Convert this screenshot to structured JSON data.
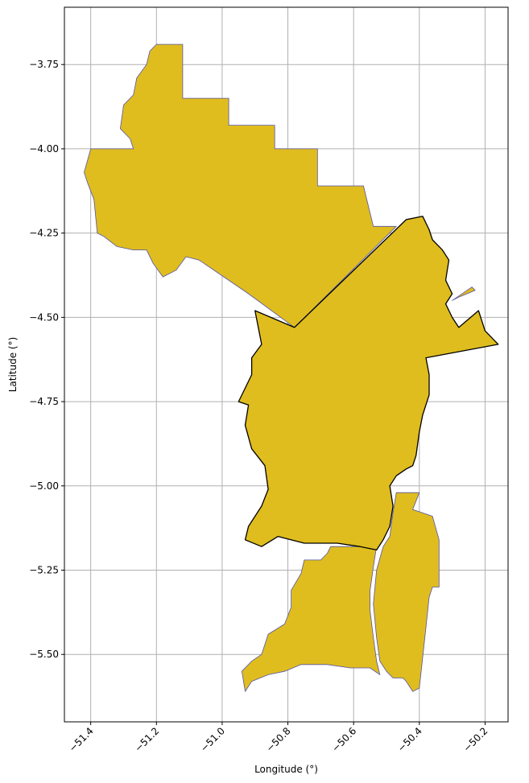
{
  "chart_data": {
    "type": "map",
    "xlabel": "Longitude (°)",
    "ylabel": "Latitude (°)",
    "xlim": [
      -51.48,
      -50.13
    ],
    "ylim": [
      -5.7,
      -3.58
    ],
    "xticks": [
      -51.4,
      -51.2,
      -51.0,
      -50.8,
      -50.6,
      -50.4,
      -50.2
    ],
    "xtick_labels": [
      "−51.4",
      "−51.2",
      "−51.0",
      "−50.8",
      "−50.6",
      "−50.4",
      "−50.2"
    ],
    "yticks": [
      -3.75,
      -4.0,
      -4.25,
      -4.5,
      -4.75,
      -5.0,
      -5.25,
      -5.5
    ],
    "ytick_labels": [
      "−3.75",
      "−4.00",
      "−4.25",
      "−4.50",
      "−4.75",
      "−5.00",
      "−5.25",
      "−5.50"
    ],
    "grid": true,
    "colors": {
      "fill": "#DFBD1F",
      "region_edge": "#5553A6",
      "highlight_edge": "#000000",
      "grid": "#b0b0b0"
    },
    "regions": [
      {
        "id": "north",
        "coords": [
          [
            -51.2,
            -3.69
          ],
          [
            -51.12,
            -3.69
          ],
          [
            -51.12,
            -3.85
          ],
          [
            -50.98,
            -3.85
          ],
          [
            -50.98,
            -3.93
          ],
          [
            -50.84,
            -3.93
          ],
          [
            -50.84,
            -4.0
          ],
          [
            -50.71,
            -4.0
          ],
          [
            -50.71,
            -4.11
          ],
          [
            -50.57,
            -4.11
          ],
          [
            -50.54,
            -4.23
          ],
          [
            -50.47,
            -4.23
          ],
          [
            -50.78,
            -4.53
          ],
          [
            -50.92,
            -4.43
          ],
          [
            -51.07,
            -4.33
          ],
          [
            -51.11,
            -4.32
          ],
          [
            -51.14,
            -4.36
          ],
          [
            -51.18,
            -4.38
          ],
          [
            -51.21,
            -4.34
          ],
          [
            -51.23,
            -4.3
          ],
          [
            -51.27,
            -4.3
          ],
          [
            -51.32,
            -4.29
          ],
          [
            -51.36,
            -4.26
          ],
          [
            -51.38,
            -4.25
          ],
          [
            -51.39,
            -4.15
          ],
          [
            -51.41,
            -4.1
          ],
          [
            -51.42,
            -4.07
          ],
          [
            -51.4,
            -4.0
          ],
          [
            -51.27,
            -4.0
          ],
          [
            -51.28,
            -3.97
          ],
          [
            -51.31,
            -3.94
          ],
          [
            -51.3,
            -3.87
          ],
          [
            -51.27,
            -3.84
          ],
          [
            -51.26,
            -3.79
          ],
          [
            -51.23,
            -3.75
          ],
          [
            -51.22,
            -3.71
          ]
        ]
      },
      {
        "id": "southwest",
        "coords": [
          [
            -50.67,
            -5.18
          ],
          [
            -50.53,
            -5.18
          ],
          [
            -50.54,
            -5.24
          ],
          [
            -50.55,
            -5.31
          ],
          [
            -50.55,
            -5.37
          ],
          [
            -50.54,
            -5.45
          ],
          [
            -50.53,
            -5.52
          ],
          [
            -50.52,
            -5.56
          ],
          [
            -50.55,
            -5.54
          ],
          [
            -50.61,
            -5.54
          ],
          [
            -50.68,
            -5.53
          ],
          [
            -50.76,
            -5.53
          ],
          [
            -50.81,
            -5.55
          ],
          [
            -50.86,
            -5.56
          ],
          [
            -50.91,
            -5.58
          ],
          [
            -50.93,
            -5.61
          ],
          [
            -50.94,
            -5.55
          ],
          [
            -50.91,
            -5.52
          ],
          [
            -50.88,
            -5.5
          ],
          [
            -50.86,
            -5.44
          ],
          [
            -50.81,
            -5.41
          ],
          [
            -50.79,
            -5.36
          ],
          [
            -50.79,
            -5.31
          ],
          [
            -50.76,
            -5.26
          ],
          [
            -50.75,
            -5.22
          ],
          [
            -50.7,
            -5.22
          ],
          [
            -50.68,
            -5.2
          ]
        ]
      },
      {
        "id": "southeast",
        "coords": [
          [
            -50.47,
            -5.02
          ],
          [
            -50.4,
            -5.02
          ],
          [
            -50.42,
            -5.07
          ],
          [
            -50.36,
            -5.09
          ],
          [
            -50.34,
            -5.16
          ],
          [
            -50.34,
            -5.3
          ],
          [
            -50.36,
            -5.3
          ],
          [
            -50.37,
            -5.33
          ],
          [
            -50.38,
            -5.42
          ],
          [
            -50.39,
            -5.51
          ],
          [
            -50.4,
            -5.6
          ],
          [
            -50.42,
            -5.61
          ],
          [
            -50.44,
            -5.58
          ],
          [
            -50.45,
            -5.57
          ],
          [
            -50.48,
            -5.57
          ],
          [
            -50.5,
            -5.55
          ],
          [
            -50.52,
            -5.52
          ],
          [
            -50.53,
            -5.45
          ],
          [
            -50.54,
            -5.35
          ],
          [
            -50.53,
            -5.25
          ],
          [
            -50.51,
            -5.18
          ],
          [
            -50.49,
            -5.15
          ],
          [
            -50.48,
            -5.08
          ]
        ]
      },
      {
        "id": "island",
        "coords": [
          [
            -50.3,
            -4.45
          ],
          [
            -50.24,
            -4.41
          ],
          [
            -50.23,
            -4.42
          ],
          [
            -50.28,
            -4.44
          ]
        ]
      }
    ],
    "highlight_region": {
      "coords": [
        [
          -50.78,
          -4.53
        ],
        [
          -50.44,
          -4.21
        ],
        [
          -50.39,
          -4.2
        ],
        [
          -50.37,
          -4.24
        ],
        [
          -50.36,
          -4.27
        ],
        [
          -50.33,
          -4.3
        ],
        [
          -50.31,
          -4.33
        ],
        [
          -50.32,
          -4.39
        ],
        [
          -50.3,
          -4.43
        ],
        [
          -50.32,
          -4.46
        ],
        [
          -50.3,
          -4.5
        ],
        [
          -50.28,
          -4.53
        ],
        [
          -50.22,
          -4.48
        ],
        [
          -50.2,
          -4.54
        ],
        [
          -50.16,
          -4.58
        ],
        [
          -50.38,
          -4.62
        ],
        [
          -50.37,
          -4.67
        ],
        [
          -50.37,
          -4.73
        ],
        [
          -50.39,
          -4.79
        ],
        [
          -50.4,
          -4.84
        ],
        [
          -50.41,
          -4.91
        ],
        [
          -50.42,
          -4.94
        ],
        [
          -50.44,
          -4.95
        ],
        [
          -50.47,
          -4.97
        ],
        [
          -50.49,
          -5.0
        ],
        [
          -50.48,
          -5.06
        ],
        [
          -50.49,
          -5.12
        ],
        [
          -50.51,
          -5.16
        ],
        [
          -50.53,
          -5.19
        ],
        [
          -50.58,
          -5.18
        ],
        [
          -50.65,
          -5.17
        ],
        [
          -50.75,
          -5.17
        ],
        [
          -50.83,
          -5.15
        ],
        [
          -50.88,
          -5.18
        ],
        [
          -50.93,
          -5.16
        ],
        [
          -50.92,
          -5.12
        ],
        [
          -50.88,
          -5.06
        ],
        [
          -50.86,
          -5.01
        ],
        [
          -50.87,
          -4.94
        ],
        [
          -50.91,
          -4.89
        ],
        [
          -50.93,
          -4.82
        ],
        [
          -50.92,
          -4.76
        ],
        [
          -50.95,
          -4.75
        ],
        [
          -50.91,
          -4.67
        ],
        [
          -50.91,
          -4.62
        ],
        [
          -50.88,
          -4.58
        ],
        [
          -50.9,
          -4.48
        ]
      ]
    }
  }
}
